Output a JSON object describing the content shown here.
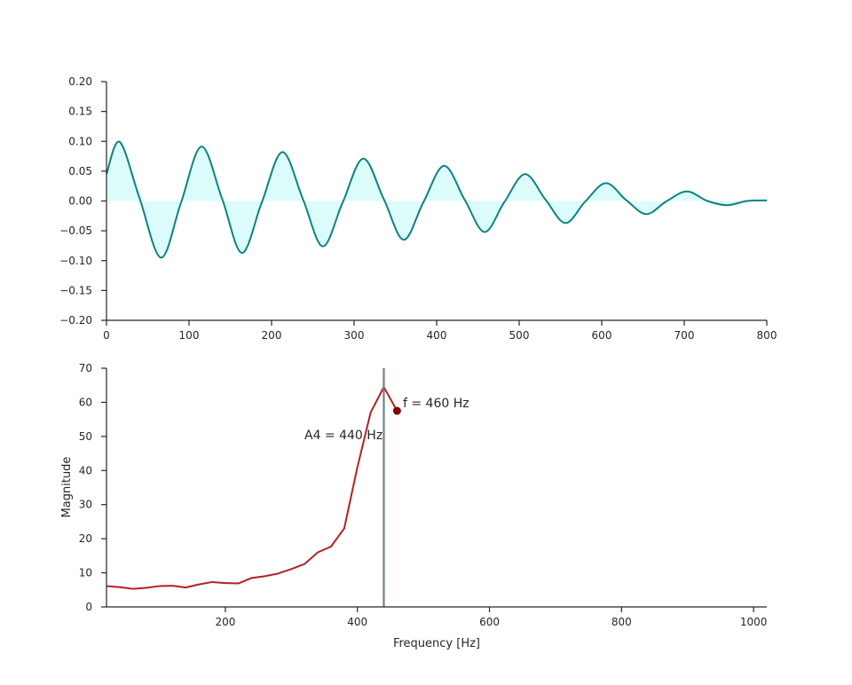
{
  "chart_data": [
    {
      "type": "line",
      "title": "",
      "xlabel": "",
      "ylabel": "",
      "xlim": [
        0,
        800
      ],
      "ylim": [
        -0.2,
        0.2
      ],
      "xticks": [
        0,
        100,
        200,
        300,
        400,
        500,
        600,
        700,
        800
      ],
      "xtick_labels": [
        "0",
        "100",
        "200",
        "300",
        "400",
        "500",
        "600",
        "700",
        "800"
      ],
      "yticks": [
        -0.2,
        -0.15,
        -0.1,
        -0.05,
        0.0,
        0.05,
        0.1,
        0.15,
        0.2
      ],
      "ytick_labels": [
        "−0.20",
        "−0.15",
        "−0.10",
        "−0.05",
        "0.00",
        "0.05",
        "0.10",
        "0.15",
        "0.20"
      ],
      "grid": false,
      "fill_to_zero": true,
      "colors": {
        "line": "#0b8282",
        "fill": "#dcfcfc"
      },
      "series": [
        {
          "x": [
            0,
            16,
            40,
            66,
            90,
            115,
            140,
            164,
            188,
            213,
            238,
            262,
            286,
            311,
            336,
            360,
            384,
            409,
            434,
            458,
            482,
            507,
            532,
            556,
            580,
            605,
            630,
            654,
            678,
            703,
            728,
            752,
            776,
            800
          ],
          "values": [
            0.045,
            0.099,
            0.005,
            -0.095,
            -0.004,
            0.091,
            0.004,
            -0.087,
            -0.003,
            0.082,
            0.003,
            -0.076,
            -0.003,
            0.071,
            0.003,
            -0.065,
            -0.002,
            0.059,
            0.002,
            -0.052,
            -0.002,
            0.045,
            0.002,
            -0.037,
            -0.001,
            0.03,
            0.001,
            -0.022,
            -0.001,
            0.016,
            0.0,
            -0.007,
            0.0,
            0.001
          ]
        }
      ]
    },
    {
      "type": "line",
      "title": "",
      "xlabel": "Frequency [Hz]",
      "ylabel": "Magnitude",
      "xlim": [
        20,
        1020
      ],
      "ylim": [
        0,
        70
      ],
      "xticks": [
        200,
        400,
        600,
        800,
        1000
      ],
      "xtick_labels": [
        "200",
        "400",
        "600",
        "800",
        "1000"
      ],
      "yticks": [
        0,
        10,
        20,
        30,
        40,
        50,
        60,
        70
      ],
      "ytick_labels": [
        "0",
        "10",
        "20",
        "30",
        "40",
        "50",
        "60",
        "70"
      ],
      "grid": false,
      "colors": {
        "line": "#b22222",
        "vline": "#708090",
        "marker": "#8b0000"
      },
      "series": [
        {
          "x": [
            20,
            40,
            60,
            80,
            100,
            120,
            140,
            160,
            180,
            200,
            220,
            240,
            260,
            280,
            300,
            320,
            340,
            360,
            380,
            400,
            420,
            440,
            460
          ],
          "values": [
            6.1,
            5.8,
            5.3,
            5.6,
            6.1,
            6.2,
            5.7,
            6.6,
            7.3,
            7.0,
            6.9,
            8.5,
            9.0,
            9.8,
            11.1,
            12.6,
            16.0,
            17.7,
            23.0,
            41.0,
            57.0,
            64.5,
            57.5
          ]
        }
      ],
      "vline": {
        "x": 440,
        "label": "A4 = 440 Hz"
      },
      "marker": {
        "x": 460,
        "y": 57.5,
        "label": "f = 460 Hz"
      }
    }
  ]
}
